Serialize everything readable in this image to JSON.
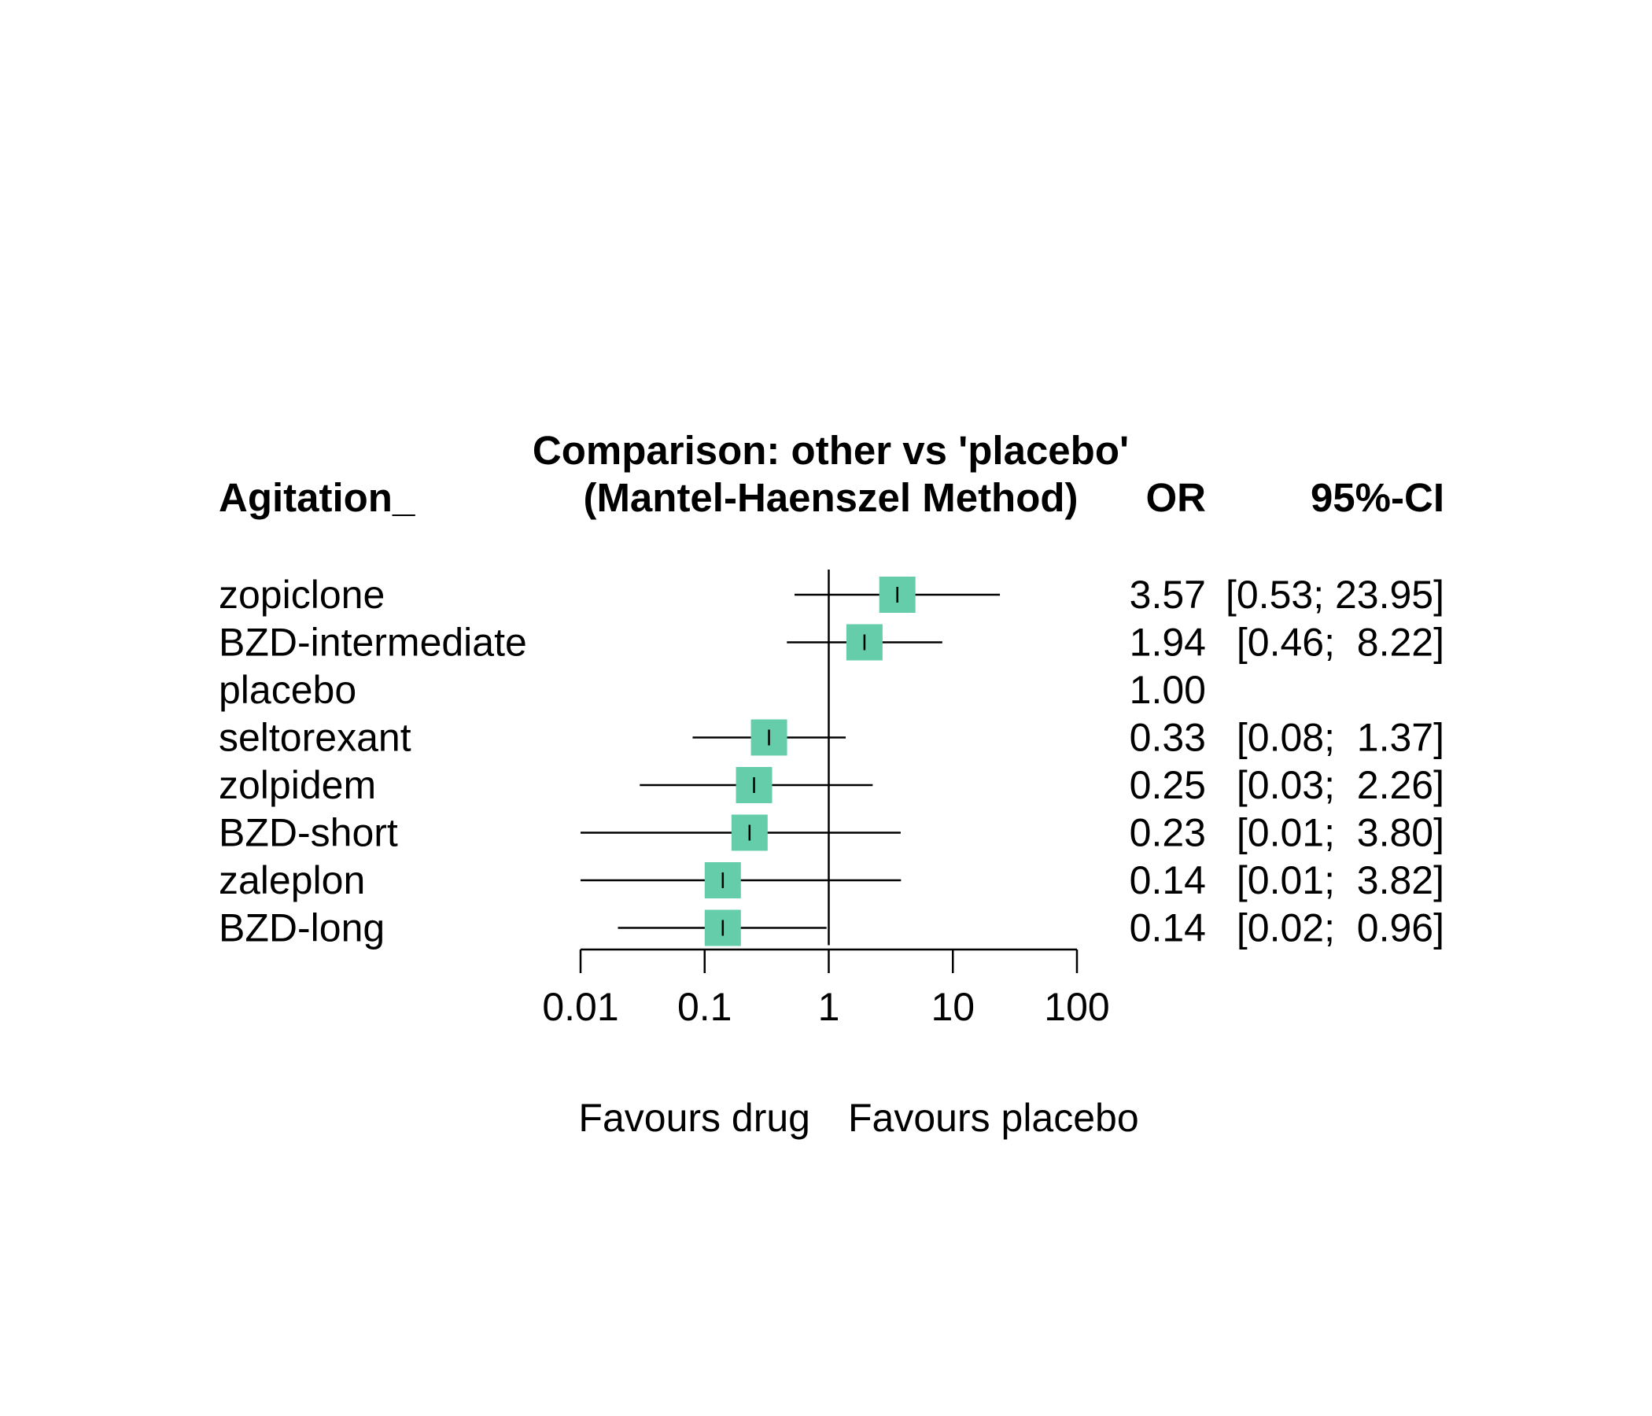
{
  "chart_data": {
    "type": "forest",
    "scale": "log",
    "title": "Comparison: other vs 'placebo'",
    "subtitle": "(Mantel-Haenszel Method)",
    "outcome_label": "Agitation_",
    "effect_header": "OR",
    "ci_header": "95%-CI",
    "reference_value": 1,
    "x_ticks": [
      0.01,
      0.1,
      1,
      10,
      100
    ],
    "x_tick_labels": [
      "0.01",
      "0.1",
      "1",
      "10",
      "100"
    ],
    "xlim": [
      0.01,
      100
    ],
    "label_left": "Favours drug",
    "label_right": "Favours placebo",
    "marker_color": "#66CDAA",
    "rows": [
      {
        "treatment": "zopiclone",
        "or": 3.57,
        "lower": 0.53,
        "upper": 23.95,
        "or_text": "3.57",
        "ci_text": "[0.53; 23.95]"
      },
      {
        "treatment": "BZD-intermediate",
        "or": 1.94,
        "lower": 0.46,
        "upper": 8.22,
        "or_text": "1.94",
        "ci_text": "[0.46;  8.22]"
      },
      {
        "treatment": "placebo",
        "or": 1.0,
        "lower": null,
        "upper": null,
        "or_text": "1.00",
        "ci_text": ""
      },
      {
        "treatment": "seltorexant",
        "or": 0.33,
        "lower": 0.08,
        "upper": 1.37,
        "or_text": "0.33",
        "ci_text": "[0.08;  1.37]"
      },
      {
        "treatment": "zolpidem",
        "or": 0.25,
        "lower": 0.03,
        "upper": 2.26,
        "or_text": "0.25",
        "ci_text": "[0.03;  2.26]"
      },
      {
        "treatment": "BZD-short",
        "or": 0.23,
        "lower": 0.01,
        "upper": 3.8,
        "or_text": "0.23",
        "ci_text": "[0.01;  3.80]"
      },
      {
        "treatment": "zaleplon",
        "or": 0.14,
        "lower": 0.01,
        "upper": 3.82,
        "or_text": "0.14",
        "ci_text": "[0.01;  3.82]"
      },
      {
        "treatment": "BZD-long",
        "or": 0.14,
        "lower": 0.02,
        "upper": 0.96,
        "or_text": "0.14",
        "ci_text": "[0.02;  0.96]"
      }
    ]
  }
}
